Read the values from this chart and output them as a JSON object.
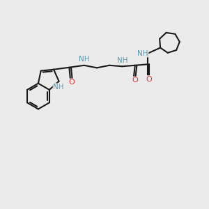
{
  "bg_color": "#ebebeb",
  "bond_color": "#1a1a1a",
  "N_color": "#5a9ab0",
  "O_color": "#e63333",
  "lw": 1.5,
  "figsize": [
    3.0,
    3.0
  ],
  "dpi": 100,
  "xlim": [
    0,
    10
  ],
  "ylim": [
    0,
    10
  ]
}
